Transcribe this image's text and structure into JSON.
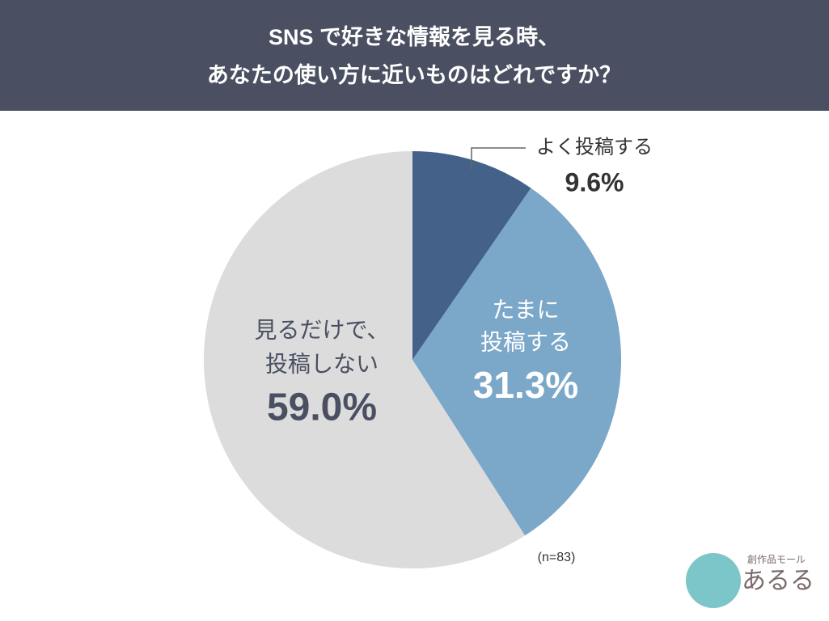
{
  "chart_data": {
    "type": "pie",
    "title": [
      "SNS で好きな情報を見る時、",
      "あなたの使い方に近いものはどれですか？"
    ],
    "categories": [
      [
        "よく投稿する"
      ],
      [
        "たまに",
        "投稿する"
      ],
      [
        "見るだけで、",
        "投稿しない"
      ]
    ],
    "values": [
      9.6,
      31.3,
      59.0
    ],
    "value_labels": [
      "9.6%",
      "31.3%",
      "59.0%"
    ],
    "colors": [
      "#44618a",
      "#7ba7c9",
      "#dcdcdc"
    ],
    "note": "(n=83)"
  },
  "logo": {
    "tagline": "創作品モール",
    "name": "あるる"
  }
}
